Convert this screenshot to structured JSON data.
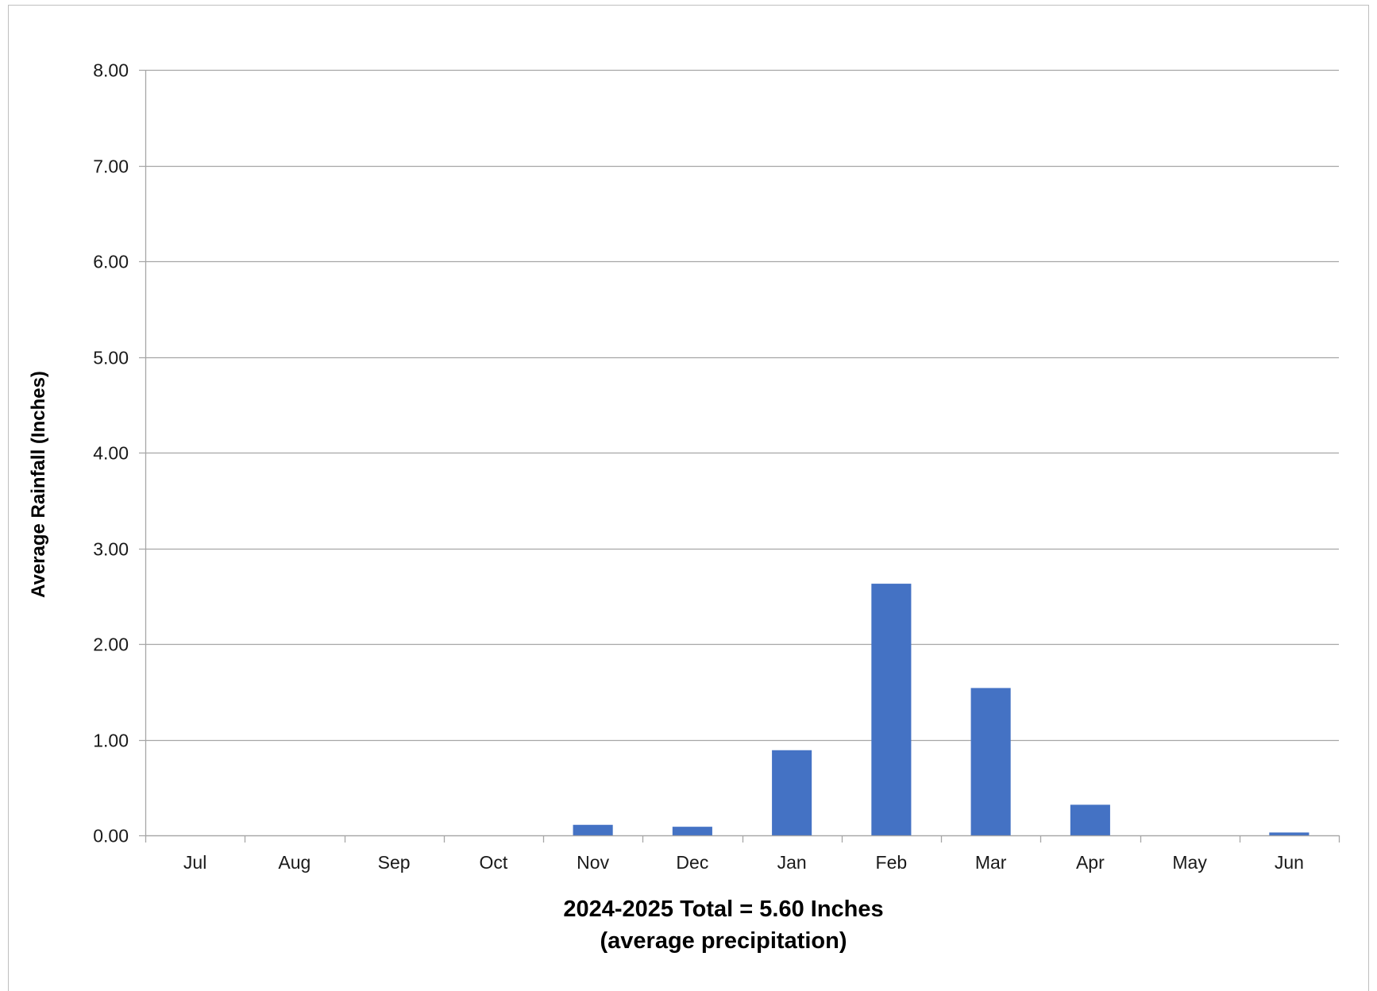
{
  "chart_data": {
    "type": "bar",
    "categories": [
      "Jul",
      "Aug",
      "Sep",
      "Oct",
      "Nov",
      "Dec",
      "Jan",
      "Feb",
      "Mar",
      "Apr",
      "May",
      "Jun"
    ],
    "series": [
      {
        "values": [
          0,
          0,
          0,
          0,
          0.11,
          0.09,
          0.89,
          2.63,
          1.54,
          0.32,
          0,
          0.03
        ]
      }
    ],
    "ylabel": "Average Rainfall (Inches)",
    "xlabel_line1": "2024-2025 Total = 5.60 Inches",
    "xlabel_line2": "(average precipitation)",
    "ylim": [
      0,
      8
    ],
    "yticks": [
      "0.00",
      "1.00",
      "2.00",
      "3.00",
      "4.00",
      "5.00",
      "6.00",
      "7.00",
      "8.00"
    ],
    "grid": true,
    "legend": "none",
    "colors": {
      "bar": "#4472c4",
      "grid": "#a6a6a6",
      "axis": "#a6a6a6"
    }
  }
}
